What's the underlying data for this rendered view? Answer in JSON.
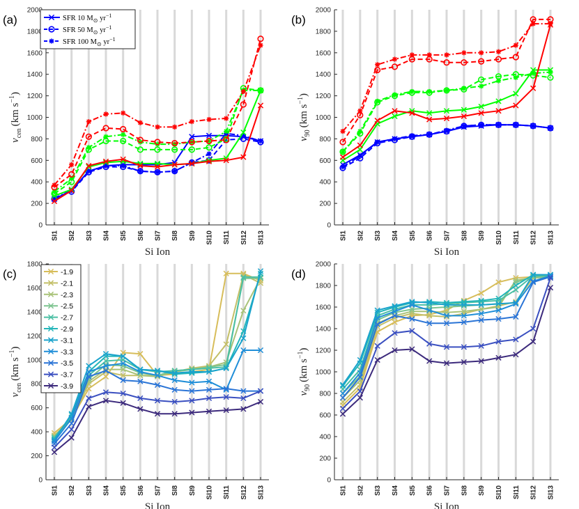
{
  "chart_data": [
    {
      "panel": "(a)",
      "type": "line",
      "categories": [
        "SI1",
        "SI2",
        "SI3",
        "SI4",
        "SI5",
        "SI6",
        "SI7",
        "SI8",
        "SI9",
        "SI10",
        "SI11",
        "SI12",
        "SI13"
      ],
      "xlabel": "Si Ion",
      "ylabel_main": "v",
      "ylabel_sub": "cen",
      "ylabel_unit": "(km s",
      "ylabel_exp": "−1",
      "ylim": [
        0,
        2000
      ],
      "yticks": [
        0,
        200,
        400,
        600,
        800,
        1000,
        1200,
        1400,
        1600,
        1800,
        2000
      ],
      "legend": {
        "position": "top-left",
        "entries": [
          {
            "label": "SFR 10 M",
            "suffix": " yr",
            "exp": "−1"
          },
          {
            "label": "SFR 50 M",
            "suffix": " yr",
            "exp": "−1"
          },
          {
            "label": "SFR 100 M",
            "suffix": " yr",
            "exp": "−1"
          }
        ]
      },
      "series": [
        {
          "name": "SFR10 blue",
          "color": "#0000ff",
          "dash": "solid",
          "marker": "x",
          "values": [
            240,
            320,
            500,
            550,
            560,
            560,
            560,
            580,
            820,
            830,
            830,
            820,
            780
          ]
        },
        {
          "name": "SFR50 blue",
          "color": "#0000ff",
          "dash": "dashed",
          "marker": "o",
          "values": [
            240,
            310,
            490,
            540,
            540,
            500,
            490,
            500,
            580,
            600,
            790,
            800,
            770
          ]
        },
        {
          "name": "SFR100 blue",
          "color": "#0000ff",
          "dash": "dashdot",
          "marker": "*",
          "values": [
            250,
            320,
            500,
            550,
            550,
            500,
            490,
            500,
            580,
            660,
            850,
            830,
            780
          ]
        },
        {
          "name": "SFR10 green",
          "color": "#00ff00",
          "dash": "solid",
          "marker": "x",
          "values": [
            270,
            330,
            540,
            580,
            590,
            570,
            570,
            560,
            570,
            600,
            620,
            860,
            1250
          ]
        },
        {
          "name": "SFR50 green",
          "color": "#00ff00",
          "dash": "dashed",
          "marker": "o",
          "values": [
            290,
            400,
            700,
            780,
            780,
            700,
            700,
            700,
            700,
            720,
            800,
            1270,
            1250
          ]
        },
        {
          "name": "SFR100 green",
          "color": "#00ff00",
          "dash": "dashdot",
          "marker": "*",
          "values": [
            310,
            430,
            720,
            820,
            840,
            770,
            750,
            750,
            770,
            780,
            870,
            1250,
            1250
          ]
        },
        {
          "name": "SFR10 red",
          "color": "#ff0000",
          "dash": "solid",
          "marker": "x",
          "values": [
            220,
            320,
            550,
            590,
            610,
            550,
            540,
            560,
            570,
            590,
            600,
            630,
            1110
          ]
        },
        {
          "name": "SFR50 red",
          "color": "#ff0000",
          "dash": "dashed",
          "marker": "o",
          "values": [
            350,
            470,
            820,
            900,
            890,
            790,
            770,
            760,
            770,
            780,
            790,
            1120,
            1730
          ]
        },
        {
          "name": "SFR100 red",
          "color": "#ff0000",
          "dash": "dashdot",
          "marker": "*",
          "values": [
            370,
            560,
            960,
            1030,
            1040,
            950,
            910,
            910,
            960,
            980,
            990,
            1240,
            1670
          ]
        }
      ]
    },
    {
      "panel": "(b)",
      "type": "line",
      "categories": [
        "SI1",
        "SI2",
        "SI3",
        "SI4",
        "SI5",
        "SI6",
        "SI7",
        "SI8",
        "SI9",
        "SI10",
        "SI11",
        "SI12",
        "SI13"
      ],
      "xlabel": "Si Ion",
      "ylabel_main": "v",
      "ylabel_sub": "90",
      "ylabel_unit": "(km s",
      "ylabel_exp": "−1",
      "ylim": [
        0,
        2000
      ],
      "yticks": [
        0,
        200,
        400,
        600,
        800,
        1000,
        1200,
        1400,
        1600,
        1800,
        2000
      ],
      "series": [
        {
          "name": "SFR10 blue",
          "color": "#0000ff",
          "dash": "solid",
          "marker": "x",
          "values": [
            560,
            650,
            770,
            800,
            820,
            840,
            870,
            910,
            920,
            930,
            930,
            920,
            900
          ]
        },
        {
          "name": "SFR50 blue",
          "color": "#0000ff",
          "dash": "dashed",
          "marker": "o",
          "values": [
            530,
            620,
            760,
            790,
            820,
            840,
            870,
            920,
            930,
            930,
            930,
            920,
            900
          ]
        },
        {
          "name": "SFR100 blue",
          "color": "#0000ff",
          "dash": "dashdot",
          "marker": "*",
          "values": [
            540,
            640,
            770,
            800,
            830,
            840,
            880,
            920,
            930,
            930,
            930,
            920,
            900
          ]
        },
        {
          "name": "SFR10 green",
          "color": "#00ff00",
          "dash": "solid",
          "marker": "x",
          "values": [
            600,
            700,
            940,
            1010,
            1060,
            1040,
            1060,
            1070,
            1100,
            1150,
            1220,
            1440,
            1440
          ]
        },
        {
          "name": "SFR50 green",
          "color": "#00ff00",
          "dash": "dashed",
          "marker": "o",
          "values": [
            680,
            850,
            1140,
            1200,
            1230,
            1230,
            1250,
            1260,
            1350,
            1380,
            1400,
            1390,
            1370
          ]
        },
        {
          "name": "SFR100 green",
          "color": "#00ff00",
          "dash": "dashdot",
          "marker": "*",
          "values": [
            680,
            870,
            1150,
            1210,
            1240,
            1240,
            1250,
            1270,
            1290,
            1340,
            1370,
            1410,
            1420
          ]
        },
        {
          "name": "SFR10 red",
          "color": "#ff0000",
          "dash": "solid",
          "marker": "x",
          "values": [
            630,
            740,
            970,
            1060,
            1040,
            980,
            990,
            1010,
            1040,
            1060,
            1110,
            1270,
            1860
          ]
        },
        {
          "name": "SFR50 red",
          "color": "#ff0000",
          "dash": "dashed",
          "marker": "o",
          "values": [
            770,
            1020,
            1440,
            1470,
            1540,
            1540,
            1510,
            1510,
            1520,
            1540,
            1560,
            1910,
            1910
          ]
        },
        {
          "name": "SFR100 red",
          "color": "#ff0000",
          "dash": "dashdot",
          "marker": "*",
          "values": [
            870,
            1060,
            1490,
            1540,
            1580,
            1580,
            1580,
            1600,
            1600,
            1610,
            1670,
            1870,
            1870
          ]
        }
      ]
    },
    {
      "panel": "(c)",
      "type": "line",
      "categories": [
        "SI1",
        "SI2",
        "SI3",
        "SI4",
        "SI5",
        "SI6",
        "SI7",
        "SI8",
        "SI9",
        "SI10",
        "SI11",
        "SI12",
        "SI13"
      ],
      "xlabel": "Si Ion",
      "ylabel_main": "v",
      "ylabel_sub": "cen",
      "ylabel_unit": "(km s",
      "ylabel_exp": "−1",
      "ylim": [
        0,
        1800
      ],
      "yticks": [
        0,
        200,
        400,
        600,
        800,
        1000,
        1200,
        1400,
        1600,
        1800
      ],
      "legend": {
        "position": "top-left",
        "entries": [
          "-1.9",
          "-2.1",
          "-2.3",
          "-2.5",
          "-2.7",
          "-2.9",
          "-3.1",
          "-3.3",
          "-3.5",
          "-3.7",
          "-3.9"
        ]
      },
      "series": [
        {
          "name": "-1.9",
          "color": "#d7bd5a",
          "values": [
            390,
            510,
            760,
            860,
            1060,
            1050,
            870,
            880,
            900,
            920,
            1720,
            1720,
            1660
          ]
        },
        {
          "name": "-2.1",
          "color": "#c3bf67",
          "values": [
            370,
            500,
            800,
            900,
            870,
            870,
            870,
            900,
            930,
            950,
            1130,
            1710,
            1640
          ]
        },
        {
          "name": "-2.3",
          "color": "#a8c278",
          "values": [
            360,
            500,
            820,
            920,
            920,
            870,
            860,
            900,
            920,
            940,
            980,
            1410,
            1680
          ]
        },
        {
          "name": "-2.5",
          "color": "#7dc48f",
          "values": [
            360,
            520,
            840,
            960,
            950,
            890,
            870,
            910,
            920,
            940,
            960,
            1680,
            1680
          ]
        },
        {
          "name": "-2.7",
          "color": "#4bbfa4",
          "values": [
            350,
            520,
            870,
            990,
            1000,
            920,
            900,
            910,
            920,
            930,
            940,
            1690,
            1690
          ]
        },
        {
          "name": "-2.9",
          "color": "#23b5b9",
          "values": [
            340,
            540,
            900,
            1030,
            1030,
            920,
            910,
            880,
            890,
            900,
            930,
            1240,
            1720
          ]
        },
        {
          "name": "-3.1",
          "color": "#1aa3cc",
          "values": [
            330,
            550,
            950,
            1050,
            1030,
            920,
            910,
            890,
            900,
            900,
            930,
            1180,
            1740
          ]
        },
        {
          "name": "-3.3",
          "color": "#1f8ed8",
          "values": [
            320,
            510,
            900,
            950,
            970,
            900,
            870,
            830,
            810,
            820,
            750,
            1080,
            1080
          ]
        },
        {
          "name": "-3.5",
          "color": "#2a74d6",
          "values": [
            300,
            470,
            860,
            910,
            830,
            820,
            790,
            750,
            740,
            750,
            760,
            740,
            740
          ]
        },
        {
          "name": "-3.7",
          "color": "#3a4fc0",
          "values": [
            270,
            420,
            680,
            730,
            720,
            680,
            660,
            650,
            660,
            680,
            690,
            680,
            740
          ]
        },
        {
          "name": "-3.9",
          "color": "#3c2a7c",
          "values": [
            230,
            350,
            610,
            660,
            640,
            590,
            550,
            550,
            560,
            570,
            580,
            590,
            650
          ]
        }
      ]
    },
    {
      "panel": "(d)",
      "type": "line",
      "categories": [
        "SI1",
        "SI2",
        "SI3",
        "SI4",
        "SI5",
        "SI6",
        "SI7",
        "SI8",
        "SI9",
        "SI10",
        "SI11",
        "SI12",
        "SI13"
      ],
      "xlabel": "Si Ion",
      "ylabel_main": "v",
      "ylabel_sub": "90",
      "ylabel_unit": "(km s",
      "ylabel_exp": "−1",
      "ylim": [
        0,
        2000
      ],
      "yticks": [
        0,
        200,
        400,
        600,
        800,
        1000,
        1200,
        1400,
        1600,
        1800,
        2000
      ],
      "series": [
        {
          "name": "-1.9",
          "color": "#d7bd5a",
          "values": [
            690,
            850,
            1370,
            1460,
            1520,
            1530,
            1570,
            1660,
            1730,
            1830,
            1870,
            1880,
            1880
          ]
        },
        {
          "name": "-2.1",
          "color": "#c3bf67",
          "values": [
            720,
            880,
            1420,
            1500,
            1540,
            1520,
            1510,
            1540,
            1580,
            1610,
            1650,
            1870,
            1880
          ]
        },
        {
          "name": "-2.3",
          "color": "#a8c278",
          "values": [
            760,
            920,
            1450,
            1520,
            1560,
            1560,
            1550,
            1560,
            1580,
            1600,
            1850,
            1870,
            1880
          ]
        },
        {
          "name": "-2.5",
          "color": "#7dc48f",
          "values": [
            800,
            960,
            1480,
            1550,
            1580,
            1590,
            1600,
            1610,
            1620,
            1630,
            1830,
            1880,
            1880
          ]
        },
        {
          "name": "-2.7",
          "color": "#4bbfa4",
          "values": [
            840,
            1020,
            1520,
            1580,
            1620,
            1620,
            1630,
            1640,
            1650,
            1660,
            1760,
            1890,
            1890
          ]
        },
        {
          "name": "-2.9",
          "color": "#23b5b9",
          "values": [
            870,
            1080,
            1550,
            1600,
            1640,
            1650,
            1640,
            1650,
            1660,
            1680,
            1800,
            1900,
            1900
          ]
        },
        {
          "name": "-3.1",
          "color": "#1aa3cc",
          "values": [
            880,
            1110,
            1570,
            1610,
            1650,
            1640,
            1620,
            1620,
            1620,
            1630,
            1640,
            1900,
            1900
          ]
        },
        {
          "name": "-3.3",
          "color": "#1f8ed8",
          "values": [
            800,
            990,
            1500,
            1560,
            1620,
            1570,
            1520,
            1520,
            1540,
            1570,
            1630,
            1840,
            1890
          ]
        },
        {
          "name": "-3.5",
          "color": "#2a74d6",
          "values": [
            760,
            950,
            1440,
            1520,
            1490,
            1450,
            1450,
            1460,
            1480,
            1490,
            1510,
            1830,
            1880
          ]
        },
        {
          "name": "-3.7",
          "color": "#3a4fc0",
          "values": [
            660,
            820,
            1240,
            1360,
            1380,
            1260,
            1230,
            1230,
            1240,
            1280,
            1300,
            1400,
            1870
          ]
        },
        {
          "name": "-3.9",
          "color": "#3c2a7c",
          "values": [
            610,
            760,
            1110,
            1200,
            1210,
            1100,
            1080,
            1090,
            1100,
            1130,
            1160,
            1280,
            1780
          ]
        }
      ]
    }
  ]
}
